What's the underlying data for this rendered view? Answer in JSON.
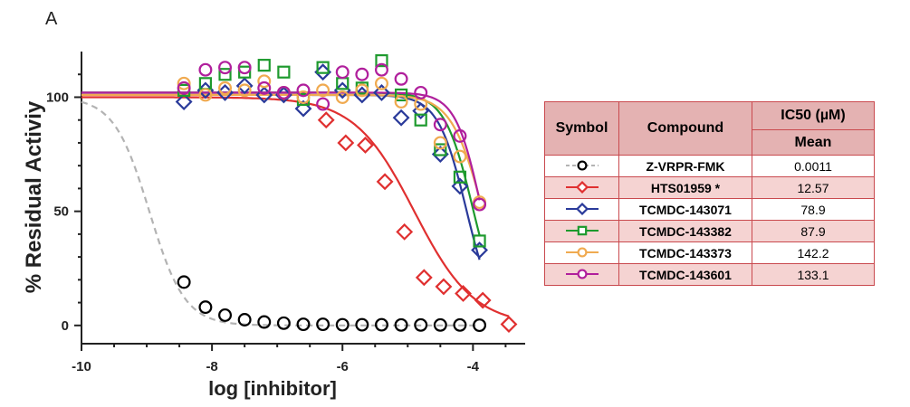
{
  "panel_label": "A",
  "table": {
    "header_symbol": "Symbol",
    "header_compound": "Compound",
    "header_ic50": "IC50 (µM)",
    "header_mean": "Mean",
    "rows": [
      {
        "compound": "Z-VRPR-FMK",
        "ic50": "0.0011",
        "color": "#000000",
        "marker": "circle",
        "line": "dashed-gray"
      },
      {
        "compound": "HTS01959 *",
        "ic50": "12.57",
        "color": "#e03030",
        "marker": "diamond",
        "line": "solid"
      },
      {
        "compound": "TCMDC-143071",
        "ic50": "78.9",
        "color": "#2a3a9a",
        "marker": "diamond",
        "line": "solid"
      },
      {
        "compound": "TCMDC-143382",
        "ic50": "87.9",
        "color": "#1e9a2e",
        "marker": "square",
        "line": "solid"
      },
      {
        "compound": "TCMDC-143373",
        "ic50": "142.2",
        "color": "#f0aa50",
        "marker": "circle",
        "line": "solid"
      },
      {
        "compound": "TCMDC-143601",
        "ic50": "133.1",
        "color": "#b01f9c",
        "marker": "circle",
        "line": "solid"
      }
    ]
  },
  "chart_data": {
    "type": "scatter",
    "xlabel": "log [inhibitor]",
    "ylabel": "% Residual Activiy",
    "xlim": [
      -10,
      -3.2
    ],
    "ylim": [
      -8,
      120
    ],
    "xticks": [
      -10,
      -8,
      -6,
      -4
    ],
    "yticks": [
      0,
      50,
      100
    ],
    "series": [
      {
        "name": "Z-VRPR-FMK",
        "color": "#000000",
        "marker": "circle",
        "curve_color": "#b3b3b3",
        "curve_dash": true,
        "fit": {
          "top": 100,
          "bottom": 0,
          "logIC50": -8.96,
          "hill": 1.6
        },
        "x": [
          -8.43,
          -8.1,
          -7.8,
          -7.5,
          -7.2,
          -6.9,
          -6.6,
          -6.3,
          -6.0,
          -5.7,
          -5.4,
          -5.1,
          -4.8,
          -4.5,
          -4.2,
          -3.9
        ],
        "y": [
          19,
          8,
          4.5,
          2.5,
          1.5,
          1,
          0.5,
          0.5,
          0.3,
          0.3,
          0.3,
          0.2,
          0.2,
          0.2,
          0.2,
          0.1
        ]
      },
      {
        "name": "HTS01959 *",
        "color": "#e03030",
        "marker": "diamond",
        "curve_color": "#e03030",
        "curve_dash": false,
        "fit": {
          "top": 100,
          "bottom": 0,
          "logIC50": -4.9,
          "hill": 0.95
        },
        "x": [
          -6.25,
          -5.95,
          -5.65,
          -5.35,
          -5.05,
          -4.75,
          -4.45,
          -4.15,
          -3.85,
          -3.45
        ],
        "y": [
          90,
          80,
          79,
          63,
          41,
          21,
          17,
          14,
          11,
          0.5
        ]
      },
      {
        "name": "TCMDC-143071",
        "color": "#2a3a9a",
        "marker": "diamond",
        "curve_color": "#2a3a9a",
        "curve_dash": false,
        "fit": {
          "top": 101,
          "bottom": 0,
          "logIC50": -4.1,
          "hill": 2.0
        },
        "x": [
          -8.43,
          -8.1,
          -7.8,
          -7.5,
          -7.2,
          -6.9,
          -6.6,
          -6.3,
          -6.0,
          -5.7,
          -5.4,
          -5.1,
          -4.8,
          -4.5,
          -4.2,
          -3.9
        ],
        "y": [
          98,
          103,
          102,
          105,
          101,
          101,
          95,
          111,
          103,
          101,
          102,
          91,
          94,
          75,
          61,
          33
        ]
      },
      {
        "name": "TCMDC-143382",
        "color": "#1e9a2e",
        "marker": "square",
        "curve_color": "#1e9a2e",
        "curve_dash": false,
        "fit": {
          "top": 102,
          "bottom": 0,
          "logIC50": -4.0,
          "hill": 2.0
        },
        "x": [
          -8.43,
          -8.1,
          -7.8,
          -7.5,
          -7.2,
          -6.9,
          -6.6,
          -6.3,
          -6.0,
          -5.7,
          -5.4,
          -5.1,
          -4.8,
          -4.5,
          -4.2,
          -3.9
        ],
        "y": [
          103,
          106,
          110,
          111,
          114,
          111,
          99,
          113,
          106,
          104,
          116,
          101,
          90,
          77,
          65,
          37
        ]
      },
      {
        "name": "TCMDC-143373",
        "color": "#f0aa50",
        "marker": "circle",
        "curve_color": "#f0aa50",
        "curve_dash": false,
        "fit": {
          "top": 101,
          "bottom": 0,
          "logIC50": -3.85,
          "hill": 1.8
        },
        "x": [
          -8.43,
          -8.1,
          -7.8,
          -7.5,
          -7.2,
          -6.9,
          -6.6,
          -6.3,
          -6.0,
          -5.7,
          -5.4,
          -5.1,
          -4.8,
          -4.5,
          -4.2,
          -3.9
        ],
        "y": [
          106,
          101,
          104,
          103,
          107,
          102,
          100,
          103,
          100,
          103,
          106,
          98,
          97,
          80,
          74,
          54
        ]
      },
      {
        "name": "TCMDC-143601",
        "color": "#b01f9c",
        "marker": "circle",
        "curve_color": "#b01f9c",
        "curve_dash": false,
        "fit": {
          "top": 102,
          "bottom": 0,
          "logIC50": -3.87,
          "hill": 2.2
        },
        "x": [
          -8.43,
          -8.1,
          -7.8,
          -7.5,
          -7.2,
          -6.9,
          -6.6,
          -6.3,
          -6.0,
          -5.7,
          -5.4,
          -5.1,
          -4.8,
          -4.5,
          -4.2,
          -3.9
        ],
        "y": [
          104,
          112,
          113,
          113,
          104,
          102,
          103,
          97,
          111,
          110,
          112,
          108,
          102,
          88,
          83,
          53
        ]
      }
    ]
  }
}
